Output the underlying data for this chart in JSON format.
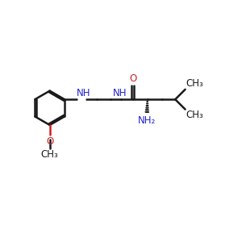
{
  "bg_color": "#ffffff",
  "line_color": "#1a1a1a",
  "N_color": "#2222cc",
  "O_color": "#cc2222",
  "bond_lw": 1.8,
  "font_size": 8.5,
  "fig_size": [
    3.0,
    3.0
  ],
  "dpi": 100,
  "xlim": [
    0,
    10
  ],
  "ylim": [
    0,
    10
  ]
}
